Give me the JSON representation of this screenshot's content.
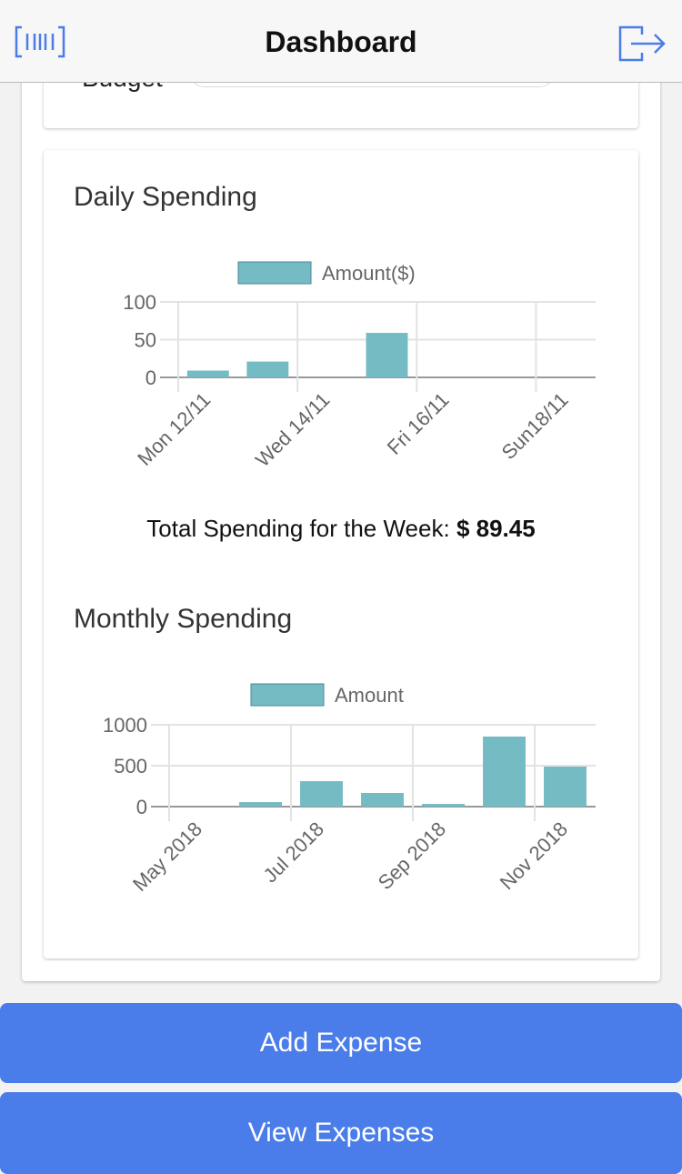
{
  "header": {
    "title": "Dashboard"
  },
  "budget_label": "Budget",
  "chart_data": [
    {
      "type": "bar",
      "title": "Daily Spending",
      "categories": [
        "Mon 12/11",
        null,
        "Wed 14/11",
        null,
        "Fri 16/11",
        null,
        "Sun18/11"
      ],
      "series": [
        {
          "name": "Amount($)",
          "color": "#74bbc4",
          "values": [
            9,
            21,
            0,
            59,
            0,
            0,
            0
          ]
        }
      ],
      "ylim": [
        0,
        100
      ],
      "yticks": [
        0,
        50,
        100
      ],
      "grid": true
    },
    {
      "type": "bar",
      "title": "Monthly Spending",
      "categories": [
        "May 2018",
        null,
        "Jul 2018",
        null,
        "Sep 2018",
        null,
        "Nov 2018"
      ],
      "series": [
        {
          "name": "Amount",
          "color": "#74bbc4",
          "values": [
            0,
            55,
            311,
            167,
            33,
            856,
            489
          ]
        }
      ],
      "ylim": [
        0,
        1000
      ],
      "yticks": [
        0,
        500,
        1000
      ],
      "grid": true
    }
  ],
  "weekly_total": {
    "label": "Total Spending for the Week:",
    "value": "$ 89.45"
  },
  "buttons": [
    "Add Expense",
    "View Expenses"
  ]
}
